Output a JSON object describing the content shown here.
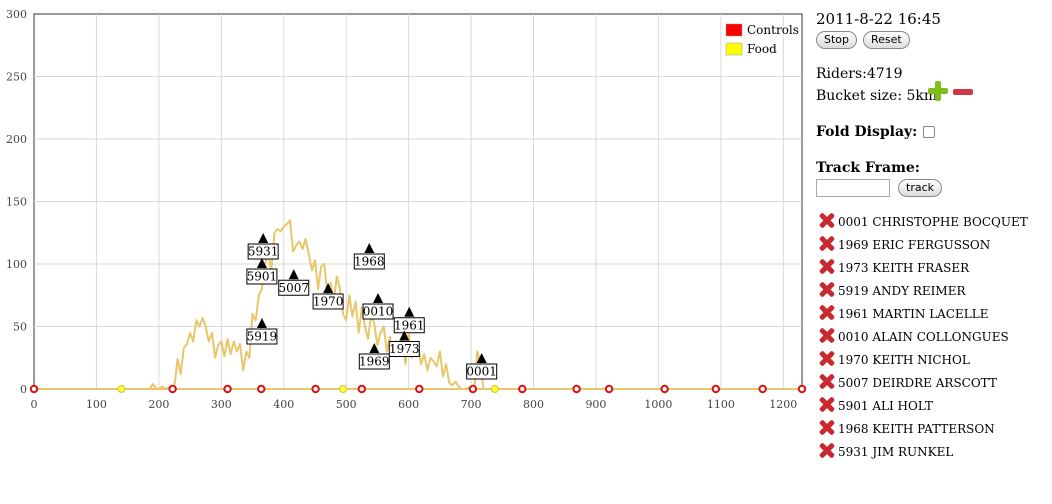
{
  "sidebar": {
    "datetime": "2011-8-22 16:45",
    "stop_label": "Stop",
    "reset_label": "Reset",
    "riders_text": "Riders:4719",
    "bucket_text": "Bucket size: 5km",
    "fold_label": "Fold Display:",
    "fold_checked": false,
    "track_frame_label": "Track Frame:",
    "track_input_value": "",
    "track_button_label": "track",
    "riders": [
      "0001 CHRISTOPHE BOCQUET",
      "1969 ERIC FERGUSSON",
      "1973 KEITH FRASER",
      "5919 ANDY REIMER",
      "1961 MARTIN LACELLE",
      "0010 ALAIN COLLONGUES",
      "1970 KEITH NICHOL",
      "5007 DEIRDRE ARSCOTT",
      "5901 ALI HOLT",
      "1968 KEITH PATTERSON",
      "5931 JIM RUNKEL"
    ]
  },
  "chart_data": {
    "type": "line",
    "x_ticks": [
      0,
      100,
      200,
      300,
      400,
      500,
      600,
      700,
      800,
      900,
      1000,
      1100,
      1200
    ],
    "y_ticks": [
      0,
      50,
      100,
      150,
      200,
      250,
      300
    ],
    "xlim": [
      0,
      1230
    ],
    "ylim": [
      0,
      300
    ],
    "grid": true,
    "line_color": "#e8c76a",
    "series": [
      {
        "x": [
          0,
          50,
          100,
          150,
          185,
          190,
          195,
          200,
          205,
          210,
          215,
          220,
          225,
          230,
          235,
          240,
          245,
          250,
          255,
          260,
          265,
          270,
          275,
          280,
          285,
          290,
          295,
          300,
          305,
          310,
          315,
          320,
          325,
          330,
          335,
          340,
          345,
          350,
          355,
          360,
          365,
          370,
          375,
          380,
          385,
          390,
          395,
          400,
          405,
          410,
          415,
          420,
          425,
          430,
          435,
          440,
          445,
          450,
          455,
          460,
          465,
          470,
          475,
          480,
          485,
          490,
          495,
          500,
          505,
          510,
          515,
          520,
          525,
          530,
          535,
          540,
          545,
          550,
          555,
          560,
          565,
          570,
          575,
          580,
          585,
          590,
          595,
          600,
          605,
          610,
          615,
          620,
          625,
          630,
          635,
          640,
          645,
          650,
          655,
          660,
          665,
          670,
          675,
          680,
          685,
          690,
          695,
          700,
          705,
          710,
          715,
          720,
          730,
          800,
          900,
          1000,
          1100,
          1230
        ],
        "y": [
          0,
          0,
          0,
          0,
          0,
          4,
          1,
          0,
          2,
          0,
          1,
          0,
          3,
          24,
          12,
          33,
          36,
          45,
          38,
          55,
          50,
          57,
          50,
          38,
          45,
          25,
          35,
          38,
          26,
          40,
          28,
          38,
          30,
          36,
          15,
          30,
          25,
          60,
          55,
          75,
          80,
          100,
          108,
          95,
          125,
          128,
          126,
          130,
          132,
          135,
          110,
          115,
          118,
          112,
          120,
          108,
          95,
          103,
          80,
          98,
          100,
          75,
          85,
          70,
          90,
          80,
          60,
          55,
          75,
          58,
          70,
          45,
          65,
          50,
          40,
          60,
          52,
          35,
          45,
          50,
          30,
          42,
          28,
          38,
          33,
          40,
          20,
          45,
          25,
          30,
          35,
          20,
          28,
          15,
          25,
          22,
          18,
          30,
          10,
          20,
          5,
          3,
          6,
          2,
          0,
          0,
          1,
          0,
          0,
          30,
          20,
          0,
          0,
          0,
          0,
          0,
          0,
          0
        ]
      }
    ],
    "legend": [
      {
        "label": "Controls",
        "color": "#ff0000"
      },
      {
        "label": "Food",
        "color": "#ffff00"
      }
    ],
    "legend_placement": "top-right",
    "controls_x": [
      0,
      222,
      310,
      364,
      451,
      525,
      617,
      703,
      782,
      869,
      921,
      1010,
      1092,
      1167,
      1233
    ],
    "food_x": [
      140,
      495,
      738
    ],
    "rider_markers": [
      {
        "label": "5931",
        "x": 367,
        "y": 120
      },
      {
        "label": "5901",
        "x": 365,
        "y": 100
      },
      {
        "label": "5007",
        "x": 416,
        "y": 91
      },
      {
        "label": "1970",
        "x": 471,
        "y": 80
      },
      {
        "label": "1968",
        "x": 537,
        "y": 112
      },
      {
        "label": "0010",
        "x": 551,
        "y": 72
      },
      {
        "label": "5919",
        "x": 365,
        "y": 52
      },
      {
        "label": "1961",
        "x": 601,
        "y": 61
      },
      {
        "label": "1969",
        "x": 545,
        "y": 32
      },
      {
        "label": "1973",
        "x": 593,
        "y": 42
      },
      {
        "label": "0001",
        "x": 717,
        "y": 24
      }
    ]
  }
}
